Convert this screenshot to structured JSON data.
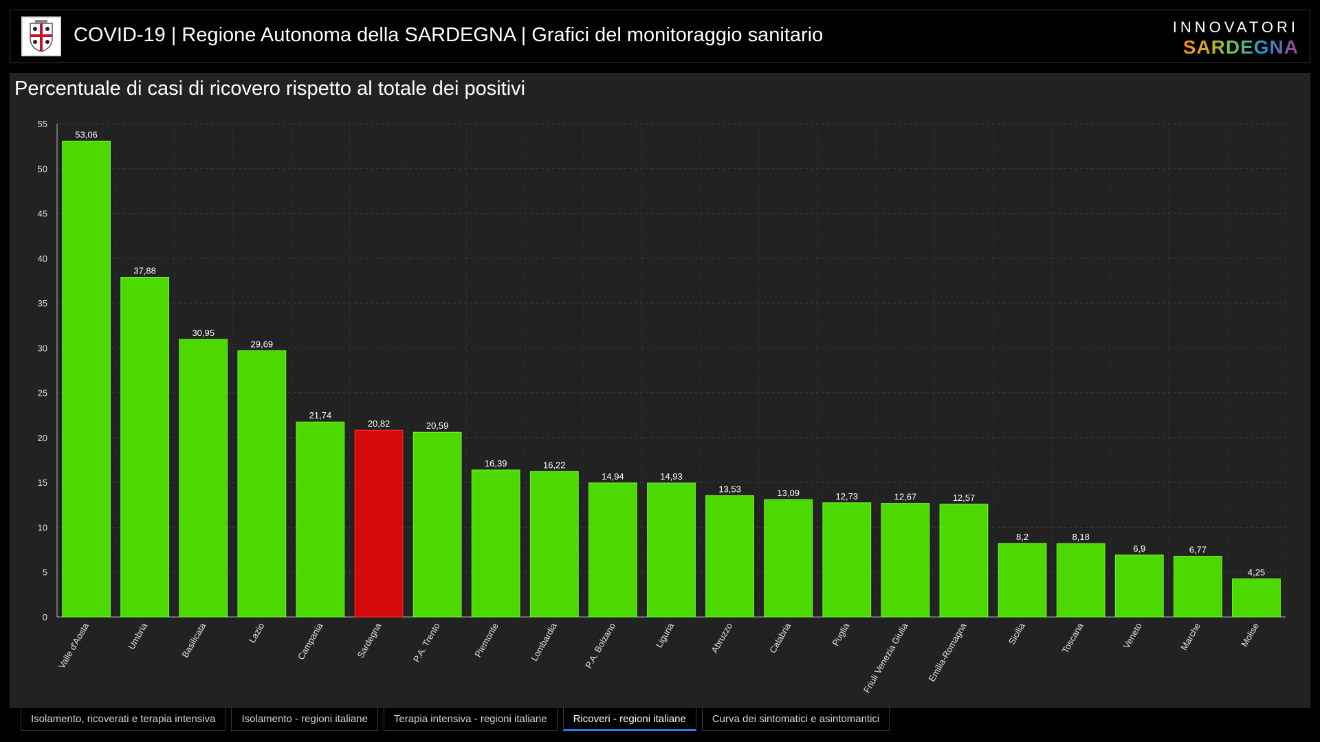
{
  "header": {
    "title": "COVID-19 | Regione Autonoma della SARDEGNA | Grafici del monitoraggio sanitario",
    "brand_top": "INNOVATORI",
    "brand_bottom": "SARDEGNA"
  },
  "chart_data": {
    "type": "bar",
    "title": "Percentuale di casi di ricovero rispetto al totale dei positivi",
    "xlabel": "",
    "ylabel": "",
    "ylim": [
      0,
      55
    ],
    "yticks": [
      0,
      5,
      10,
      15,
      20,
      25,
      30,
      35,
      40,
      45,
      50,
      55
    ],
    "grid": true,
    "categories": [
      "Valle d'Aosta",
      "Umbria",
      "Basilicata",
      "Lazio",
      "Campania",
      "Sardegna",
      "P.A. Trento",
      "Piemonte",
      "Lombardia",
      "P.A. Bolzano",
      "Liguria",
      "Abruzzo",
      "Calabria",
      "Puglia",
      "Friuli Venezia Giulia",
      "Emilia-Romagna",
      "Sicilia",
      "Toscana",
      "Veneto",
      "Marche",
      "Molise"
    ],
    "values": [
      53.06,
      37.88,
      30.95,
      29.69,
      21.74,
      20.82,
      20.59,
      16.39,
      16.22,
      14.94,
      14.93,
      13.53,
      13.09,
      12.73,
      12.67,
      12.57,
      8.2,
      8.18,
      6.9,
      6.77,
      4.25
    ],
    "value_labels": [
      "53,06",
      "37,88",
      "30,95",
      "29,69",
      "21,74",
      "20,82",
      "20,59",
      "16,39",
      "16,22",
      "14,94",
      "14,93",
      "13,53",
      "13,09",
      "12,73",
      "12,67",
      "12,57",
      "8,2",
      "8,18",
      "6,9",
      "6,77",
      "4,25"
    ],
    "highlight_category": "Sardegna",
    "bar_color": "#4cd800",
    "highlight_color": "#d60a0a"
  },
  "tabs": [
    {
      "label": "Isolamento, ricoverati e terapia intensiva",
      "active": false
    },
    {
      "label": "Isolamento - regioni italiane",
      "active": false
    },
    {
      "label": "Terapia intensiva - regioni italiane",
      "active": false
    },
    {
      "label": "Ricoveri - regioni italiane",
      "active": true
    },
    {
      "label": "Curva dei sintomatici e asintomantici",
      "active": false
    }
  ]
}
